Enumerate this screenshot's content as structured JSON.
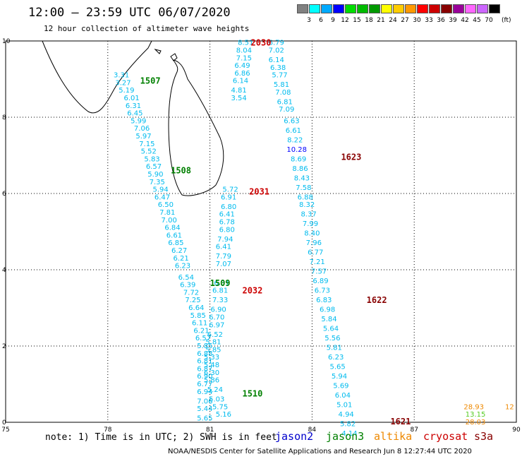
{
  "header": {
    "title": "12:00 – 23:59 UTC 06/07/2020",
    "subtitle": "12 hour collection of altimeter wave heights"
  },
  "legend": {
    "colors": [
      "#808080",
      "#00ffff",
      "#00aaff",
      "#0000ff",
      "#00dd00",
      "#00bb00",
      "#009900",
      "#ffff00",
      "#ffcc00",
      "#ff9900",
      "#ff0000",
      "#cc0000",
      "#880000",
      "#990099",
      "#ff66ff",
      "#cc66ff",
      "#000000"
    ],
    "labels": [
      "3",
      "6",
      "9",
      "12",
      "15",
      "18",
      "21",
      "24",
      "27",
      "30",
      "33",
      "36",
      "39",
      "42",
      "45",
      "70"
    ],
    "unit": "(ft)"
  },
  "map": {
    "lon_ticks": [
      "75",
      "78",
      "81",
      "84",
      "87",
      "90"
    ],
    "lat_ticks": [
      "0",
      "2",
      "4",
      "6",
      "8",
      "10"
    ],
    "lon_range": [
      75,
      90
    ],
    "lat_range": [
      0,
      10
    ],
    "grid": true,
    "passes": [
      {
        "sat": "jason3",
        "color": "#008000",
        "label": "1507",
        "label_pos": [
          79.25,
          8.95
        ]
      },
      {
        "sat": "jason3",
        "color": "#008000",
        "label": "1508",
        "label_pos": [
          80.15,
          6.6
        ]
      },
      {
        "sat": "jason3",
        "color": "#008000",
        "label": "1509",
        "label_pos": [
          81.3,
          3.65
        ]
      },
      {
        "sat": "jason3",
        "color": "#008000",
        "label": "1510",
        "label_pos": [
          82.25,
          0.75
        ]
      },
      {
        "sat": "cryosat",
        "color": "#cc0000",
        "label": "2030",
        "label_pos": [
          82.5,
          9.95
        ]
      },
      {
        "sat": "cryosat",
        "color": "#cc0000",
        "label": "2031",
        "label_pos": [
          82.45,
          6.05
        ]
      },
      {
        "sat": "cryosat",
        "color": "#cc0000",
        "label": "2032",
        "label_pos": [
          82.25,
          3.45
        ]
      },
      {
        "sat": "s3a",
        "color": "#880000",
        "label": "1623",
        "label_pos": [
          85.15,
          6.95
        ]
      },
      {
        "sat": "s3a",
        "color": "#880000",
        "label": "1622",
        "label_pos": [
          85.9,
          3.2
        ]
      },
      {
        "sat": "s3a",
        "color": "#880000",
        "label": "1621",
        "label_pos": [
          86.6,
          0.02
        ]
      }
    ],
    "tracks": [
      {
        "name": "jason3-west",
        "values": [
          {
            "lon": 78.4,
            "lat": 9.1,
            "h": "3.31"
          },
          {
            "lon": 78.45,
            "lat": 8.9,
            "h": "3.27"
          },
          {
            "lon": 78.55,
            "lat": 8.7,
            "h": "5.19"
          },
          {
            "lon": 78.7,
            "lat": 8.5,
            "h": "6.01"
          },
          {
            "lon": 78.75,
            "lat": 8.3,
            "h": "6.31"
          },
          {
            "lon": 78.8,
            "lat": 8.1,
            "h": "6.45"
          },
          {
            "lon": 78.9,
            "lat": 7.9,
            "h": "5.99"
          },
          {
            "lon": 79.0,
            "lat": 7.7,
            "h": "7.06"
          },
          {
            "lon": 79.05,
            "lat": 7.5,
            "h": "5.97"
          },
          {
            "lon": 79.15,
            "lat": 7.3,
            "h": "7.15"
          },
          {
            "lon": 79.2,
            "lat": 7.1,
            "h": "5.52"
          },
          {
            "lon": 79.3,
            "lat": 6.9,
            "h": "5.83"
          },
          {
            "lon": 79.35,
            "lat": 6.7,
            "h": "6.57"
          },
          {
            "lon": 79.4,
            "lat": 6.5,
            "h": "5.90"
          },
          {
            "lon": 79.45,
            "lat": 6.3,
            "h": "7.35"
          },
          {
            "lon": 79.55,
            "lat": 6.1,
            "h": "5.94"
          },
          {
            "lon": 79.6,
            "lat": 5.9,
            "h": "6.47"
          },
          {
            "lon": 79.7,
            "lat": 5.7,
            "h": "6.50"
          },
          {
            "lon": 79.75,
            "lat": 5.5,
            "h": "7.81"
          },
          {
            "lon": 79.8,
            "lat": 5.3,
            "h": "7.00"
          },
          {
            "lon": 79.9,
            "lat": 5.1,
            "h": "6.84"
          },
          {
            "lon": 79.95,
            "lat": 4.9,
            "h": "6.61"
          },
          {
            "lon": 80.0,
            "lat": 4.7,
            "h": "6.85"
          },
          {
            "lon": 80.1,
            "lat": 4.5,
            "h": "6.27"
          },
          {
            "lon": 80.15,
            "lat": 4.3,
            "h": "6.21"
          },
          {
            "lon": 80.2,
            "lat": 4.1,
            "h": "6.23"
          },
          {
            "lon": 80.3,
            "lat": 3.8,
            "h": "6.54"
          },
          {
            "lon": 80.35,
            "lat": 3.6,
            "h": "6.39"
          },
          {
            "lon": 80.45,
            "lat": 3.4,
            "h": "7.72"
          },
          {
            "lon": 80.5,
            "lat": 3.2,
            "h": "7.25"
          },
          {
            "lon": 80.6,
            "lat": 3.0,
            "h": "6.64"
          },
          {
            "lon": 80.65,
            "lat": 2.8,
            "h": "5.85"
          },
          {
            "lon": 80.7,
            "lat": 2.6,
            "h": "6.11"
          },
          {
            "lon": 80.75,
            "lat": 2.4,
            "h": "6.21"
          },
          {
            "lon": 80.8,
            "lat": 2.2,
            "h": "6.57"
          },
          {
            "lon": 80.85,
            "lat": 2.0,
            "h": "5.85"
          },
          {
            "lon": 80.85,
            "lat": 1.8,
            "h": "6.88"
          },
          {
            "lon": 80.85,
            "lat": 1.6,
            "h": "6.81"
          },
          {
            "lon": 80.85,
            "lat": 1.4,
            "h": "6.87"
          },
          {
            "lon": 80.85,
            "lat": 1.2,
            "h": "6.90"
          },
          {
            "lon": 80.85,
            "lat": 1.0,
            "h": "6.77"
          },
          {
            "lon": 80.85,
            "lat": 0.8,
            "h": "6.94"
          },
          {
            "lon": 80.85,
            "lat": 0.55,
            "h": "7.06"
          },
          {
            "lon": 80.85,
            "lat": 0.35,
            "h": "5.44"
          },
          {
            "lon": 80.85,
            "lat": 0.1,
            "h": "5.65"
          }
        ]
      },
      {
        "name": "cryosat-north",
        "values": [
          {
            "lon": 82.05,
            "lat": 9.95,
            "h": "8.51"
          },
          {
            "lon": 82.0,
            "lat": 9.75,
            "h": "8.04"
          },
          {
            "lon": 82.0,
            "lat": 9.55,
            "h": "7.15"
          },
          {
            "lon": 81.95,
            "lat": 9.35,
            "h": "6.49"
          },
          {
            "lon": 81.95,
            "lat": 9.15,
            "h": "6.86"
          },
          {
            "lon": 81.9,
            "lat": 8.95,
            "h": "6.14"
          },
          {
            "lon": 81.85,
            "lat": 8.7,
            "h": "4.81"
          },
          {
            "lon": 81.85,
            "lat": 8.5,
            "h": "3.54"
          }
        ]
      },
      {
        "name": "cryosat-south",
        "values": [
          {
            "lon": 81.6,
            "lat": 6.1,
            "h": "5.72"
          },
          {
            "lon": 81.55,
            "lat": 5.9,
            "h": "6.91"
          },
          {
            "lon": 81.55,
            "lat": 5.65,
            "h": "6.80"
          },
          {
            "lon": 81.5,
            "lat": 5.45,
            "h": "6.41"
          },
          {
            "lon": 81.5,
            "lat": 5.25,
            "h": "6.78"
          },
          {
            "lon": 81.5,
            "lat": 5.05,
            "h": "6.80"
          },
          {
            "lon": 81.45,
            "lat": 4.8,
            "h": "7.94"
          },
          {
            "lon": 81.4,
            "lat": 4.6,
            "h": "6.41"
          },
          {
            "lon": 81.4,
            "lat": 4.35,
            "h": "7.79"
          },
          {
            "lon": 81.4,
            "lat": 4.15,
            "h": "7.07"
          },
          {
            "lon": 81.35,
            "lat": 3.65,
            "h": "6.31"
          },
          {
            "lon": 81.3,
            "lat": 3.45,
            "h": "6.81"
          },
          {
            "lon": 81.3,
            "lat": 3.2,
            "h": "7.33"
          },
          {
            "lon": 81.25,
            "lat": 2.95,
            "h": "6.90"
          },
          {
            "lon": 81.2,
            "lat": 2.75,
            "h": "6.70"
          },
          {
            "lon": 81.2,
            "lat": 2.55,
            "h": "6.97"
          },
          {
            "lon": 81.15,
            "lat": 2.3,
            "h": "6.52"
          },
          {
            "lon": 81.1,
            "lat": 2.1,
            "h": "5.81"
          },
          {
            "lon": 81.1,
            "lat": 1.9,
            "h": "5.85"
          },
          {
            "lon": 81.05,
            "lat": 1.7,
            "h": "5.33"
          },
          {
            "lon": 81.05,
            "lat": 1.5,
            "h": "5.48"
          },
          {
            "lon": 81.05,
            "lat": 1.3,
            "h": "6.30"
          },
          {
            "lon": 81.05,
            "lat": 1.1,
            "h": "5.86"
          },
          {
            "lon": 81.15,
            "lat": 0.85,
            "h": "5.24"
          },
          {
            "lon": 81.2,
            "lat": 0.6,
            "h": "5.03"
          },
          {
            "lon": 81.3,
            "lat": 0.4,
            "h": "5.75"
          },
          {
            "lon": 81.4,
            "lat": 0.2,
            "h": "5.16"
          }
        ]
      },
      {
        "name": "s3a",
        "values": [
          {
            "lon": 82.95,
            "lat": 9.95,
            "h": "6.79"
          },
          {
            "lon": 82.95,
            "lat": 9.75,
            "h": "7.02"
          },
          {
            "lon": 82.95,
            "lat": 9.5,
            "h": "6.14"
          },
          {
            "lon": 83.0,
            "lat": 9.3,
            "h": "6.38"
          },
          {
            "lon": 83.05,
            "lat": 9.1,
            "h": "5.77"
          },
          {
            "lon": 83.1,
            "lat": 8.85,
            "h": "5.81"
          },
          {
            "lon": 83.15,
            "lat": 8.65,
            "h": "7.08"
          },
          {
            "lon": 83.2,
            "lat": 8.4,
            "h": "6.81"
          },
          {
            "lon": 83.25,
            "lat": 8.2,
            "h": "7.09"
          },
          {
            "lon": 83.4,
            "lat": 7.9,
            "h": "6.63"
          },
          {
            "lon": 83.45,
            "lat": 7.65,
            "h": "6.61"
          },
          {
            "lon": 83.5,
            "lat": 7.4,
            "h": "8.22"
          },
          {
            "lon": 83.55,
            "lat": 7.15,
            "h": "10.28"
          },
          {
            "lon": 83.6,
            "lat": 6.9,
            "h": "8.69"
          },
          {
            "lon": 83.65,
            "lat": 6.65,
            "h": "8.86"
          },
          {
            "lon": 83.7,
            "lat": 6.4,
            "h": "8.43"
          },
          {
            "lon": 83.75,
            "lat": 6.15,
            "h": "7.58"
          },
          {
            "lon": 83.8,
            "lat": 5.9,
            "h": "6.88"
          },
          {
            "lon": 83.85,
            "lat": 5.7,
            "h": "8.32"
          },
          {
            "lon": 83.9,
            "lat": 5.45,
            "h": "8.37"
          },
          {
            "lon": 83.95,
            "lat": 5.2,
            "h": "7.99"
          },
          {
            "lon": 84.0,
            "lat": 4.95,
            "h": "8.40"
          },
          {
            "lon": 84.05,
            "lat": 4.7,
            "h": "7.96"
          },
          {
            "lon": 84.1,
            "lat": 4.45,
            "h": "6.77"
          },
          {
            "lon": 84.15,
            "lat": 4.2,
            "h": "7.21"
          },
          {
            "lon": 84.2,
            "lat": 3.95,
            "h": "7.57"
          },
          {
            "lon": 84.25,
            "lat": 3.7,
            "h": "6.89"
          },
          {
            "lon": 84.3,
            "lat": 3.45,
            "h": "6.73"
          },
          {
            "lon": 84.35,
            "lat": 3.2,
            "h": "6.83"
          },
          {
            "lon": 84.45,
            "lat": 2.95,
            "h": "6.98"
          },
          {
            "lon": 84.5,
            "lat": 2.7,
            "h": "5.84"
          },
          {
            "lon": 84.55,
            "lat": 2.45,
            "h": "5.64"
          },
          {
            "lon": 84.6,
            "lat": 2.2,
            "h": "5.56"
          },
          {
            "lon": 84.65,
            "lat": 1.95,
            "h": "5.81"
          },
          {
            "lon": 84.7,
            "lat": 1.7,
            "h": "6.23"
          },
          {
            "lon": 84.75,
            "lat": 1.45,
            "h": "5.65"
          },
          {
            "lon": 84.8,
            "lat": 1.2,
            "h": "5.94"
          },
          {
            "lon": 84.85,
            "lat": 0.95,
            "h": "5.69"
          },
          {
            "lon": 84.9,
            "lat": 0.7,
            "h": "6.04"
          },
          {
            "lon": 84.95,
            "lat": 0.45,
            "h": "5.01"
          },
          {
            "lon": 85.0,
            "lat": 0.2,
            "h": "4.94"
          },
          {
            "lon": 85.05,
            "lat": -0.05,
            "h": "5.82"
          },
          {
            "lon": 85.1,
            "lat": -0.3,
            "h": "4.14"
          }
        ]
      }
    ],
    "extra_values": [
      {
        "lon": 88.75,
        "lat": 0.4,
        "h": "28.93",
        "color": "#ee8800"
      },
      {
        "lon": 88.8,
        "lat": 0.2,
        "h": "13.15",
        "color": "#55cc22"
      },
      {
        "lon": 88.8,
        "lat": 0.0,
        "h": "28.03",
        "color": "#ee8800"
      },
      {
        "lon": 89.8,
        "lat": 0.4,
        "h": "12",
        "color": "#ee8800"
      }
    ]
  },
  "footer": {
    "note": "note: 1) Time is in UTC; 2) SWH is in feet",
    "satellites": [
      {
        "name": "jason2",
        "color": "#0000cc"
      },
      {
        "name": "jason3",
        "color": "#008000"
      },
      {
        "name": "altika",
        "color": "#ee8800"
      },
      {
        "name": "cryosat",
        "color": "#cc0000"
      },
      {
        "name": "s3a",
        "color": "#880000"
      }
    ],
    "credit": "NOAA/NESDIS Center for Satellite Applications and Research    Jun  8 12:27:44 UTC 2020"
  }
}
